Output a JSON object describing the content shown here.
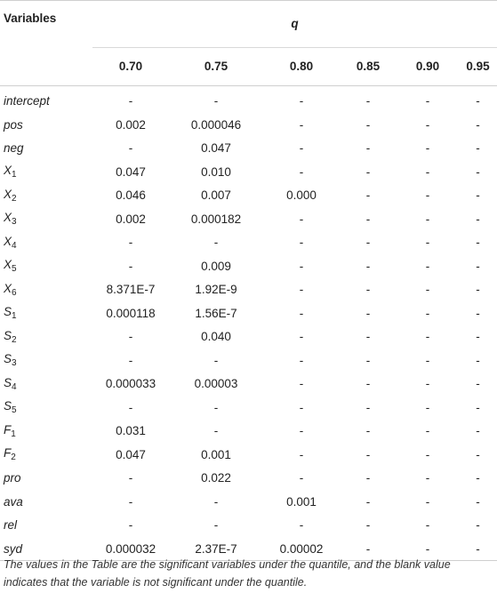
{
  "header": {
    "variables_label": "Variables",
    "q_label": "q",
    "quantiles": [
      "0.70",
      "0.75",
      "0.80",
      "0.85",
      "0.90",
      "0.95"
    ]
  },
  "rows": [
    {
      "name": "intercept",
      "sub": "",
      "values": [
        "-",
        "-",
        "-",
        "-",
        "-",
        "-"
      ]
    },
    {
      "name": "pos",
      "sub": "",
      "values": [
        "0.002",
        "0.000046",
        "-",
        "-",
        "-",
        "-"
      ]
    },
    {
      "name": "neg",
      "sub": "",
      "values": [
        "-",
        "0.047",
        "-",
        "-",
        "-",
        "-"
      ]
    },
    {
      "name": "X",
      "sub": "1",
      "values": [
        "0.047",
        "0.010",
        "-",
        "-",
        "-",
        "-"
      ]
    },
    {
      "name": "X",
      "sub": "2",
      "values": [
        "0.046",
        "0.007",
        "0.000",
        "-",
        "-",
        "-"
      ]
    },
    {
      "name": "X",
      "sub": "3",
      "values": [
        "0.002",
        "0.000182",
        "-",
        "-",
        "-",
        "-"
      ]
    },
    {
      "name": "X",
      "sub": "4",
      "values": [
        "-",
        "-",
        "-",
        "-",
        "-",
        "-"
      ]
    },
    {
      "name": "X",
      "sub": "5",
      "values": [
        "-",
        "0.009",
        "-",
        "-",
        "-",
        "-"
      ]
    },
    {
      "name": "X",
      "sub": "6",
      "values": [
        "8.371E-7",
        "1.92E-9",
        "-",
        "-",
        "-",
        "-"
      ]
    },
    {
      "name": "S",
      "sub": "1",
      "values": [
        "0.000118",
        "1.56E-7",
        "-",
        "-",
        "-",
        "-"
      ]
    },
    {
      "name": "S",
      "sub": "2",
      "values": [
        "-",
        "0.040",
        "-",
        "-",
        "-",
        "-"
      ]
    },
    {
      "name": "S",
      "sub": "3",
      "values": [
        "-",
        "-",
        "-",
        "-",
        "-",
        "-"
      ]
    },
    {
      "name": "S",
      "sub": "4",
      "values": [
        "0.000033",
        "0.00003",
        "-",
        "-",
        "-",
        "-"
      ]
    },
    {
      "name": "S",
      "sub": "5",
      "values": [
        "-",
        "-",
        "-",
        "-",
        "-",
        "-"
      ]
    },
    {
      "name": "F",
      "sub": "1",
      "values": [
        "0.031",
        "-",
        "-",
        "-",
        "-",
        "-"
      ]
    },
    {
      "name": "F",
      "sub": "2",
      "values": [
        "0.047",
        "0.001",
        "-",
        "-",
        "-",
        "-"
      ]
    },
    {
      "name": "pro",
      "sub": "",
      "values": [
        "-",
        "0.022",
        "-",
        "-",
        "-",
        "-"
      ]
    },
    {
      "name": "ava",
      "sub": "",
      "values": [
        "-",
        "-",
        "0.001",
        "-",
        "-",
        "-"
      ]
    },
    {
      "name": "rel",
      "sub": "",
      "values": [
        "-",
        "-",
        "-",
        "-",
        "-",
        "-"
      ]
    },
    {
      "name": "syd",
      "sub": "",
      "values": [
        "0.000032",
        "2.37E-7",
        "0.00002",
        "-",
        "-",
        "-"
      ]
    }
  ],
  "footnote": "The values in the Table are the significant variables under the quantile, and the blank value indicates that the variable is not significant under the quantile."
}
